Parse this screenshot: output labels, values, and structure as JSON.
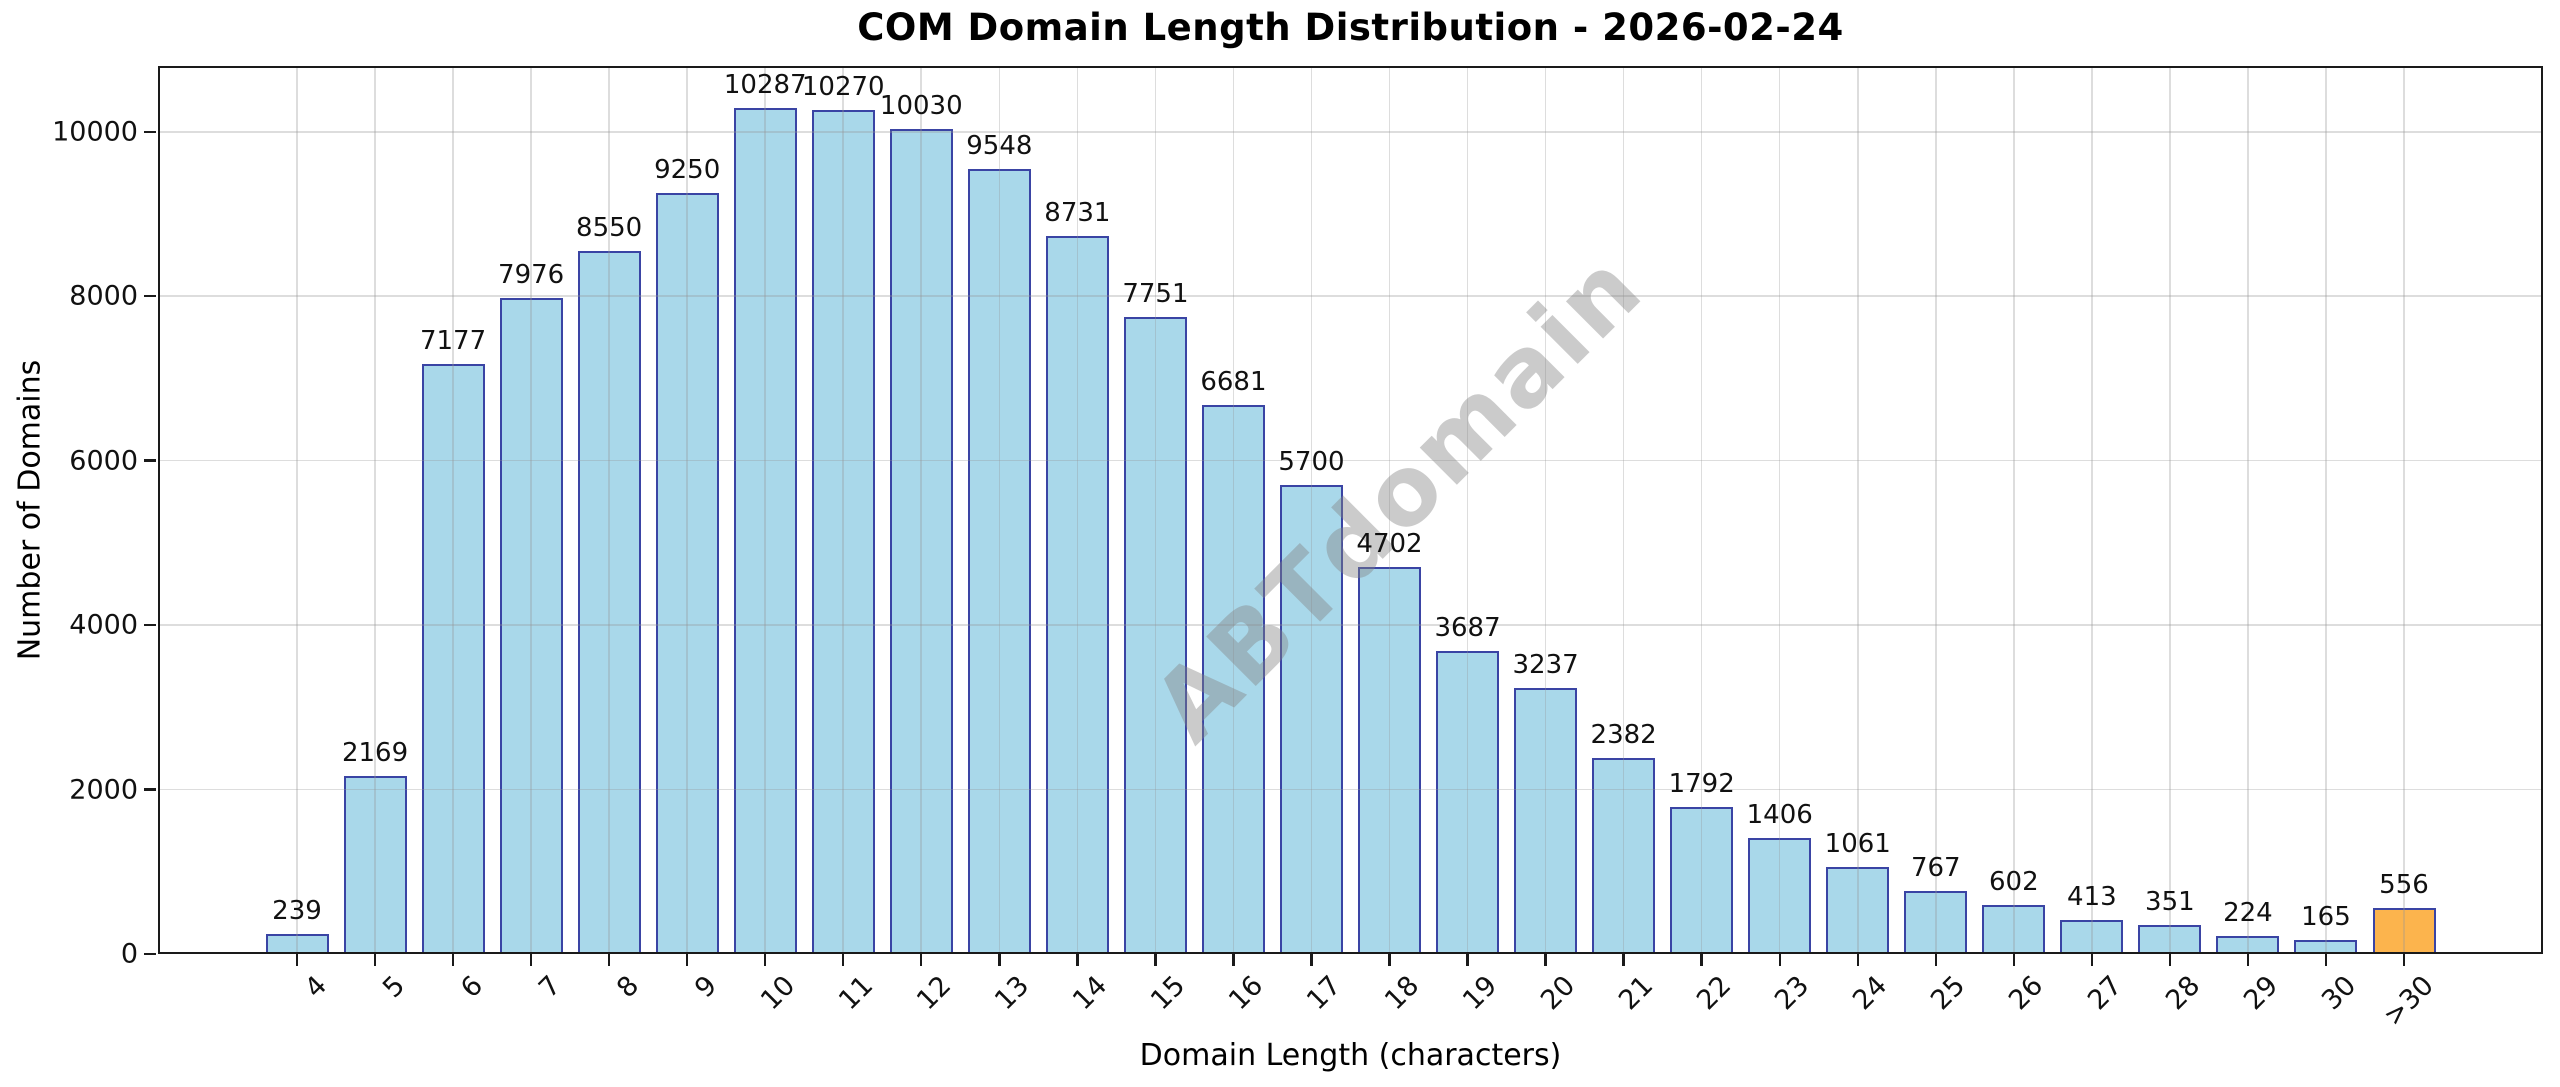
{
  "title": "COM Domain Length Distribution - 2026-02-24",
  "watermark": "ABTdomain",
  "chart_data": {
    "type": "bar",
    "title": "COM Domain Length Distribution - 2026-02-24",
    "xlabel": "Domain Length (characters)",
    "ylabel": "Number of Domains",
    "categories": [
      "4",
      "5",
      "6",
      "7",
      "8",
      "9",
      "10",
      "11",
      "12",
      "13",
      "14",
      "15",
      "16",
      "17",
      "18",
      "19",
      "20",
      "21",
      "22",
      "23",
      "24",
      "25",
      "26",
      "27",
      "28",
      "29",
      "30",
      ">30"
    ],
    "values": [
      239,
      2169,
      7177,
      7976,
      8550,
      9250,
      10287,
      10270,
      10030,
      9548,
      8731,
      7751,
      6681,
      5700,
      4702,
      3687,
      3237,
      2382,
      1792,
      1406,
      1061,
      767,
      602,
      413,
      351,
      224,
      165,
      556
    ],
    "yticks": [
      0,
      2000,
      4000,
      6000,
      8000,
      10000
    ],
    "ylim": [
      0,
      10800
    ],
    "grid": true,
    "legend_position": "none",
    "value_labels": true,
    "bar_fill_color": "#A9D8EA",
    "bar_edge_color": "#3A44A4",
    "highlight_index": 27,
    "highlight_fill_color": "#FCB44D",
    "watermark_text": "ABTdomain"
  }
}
